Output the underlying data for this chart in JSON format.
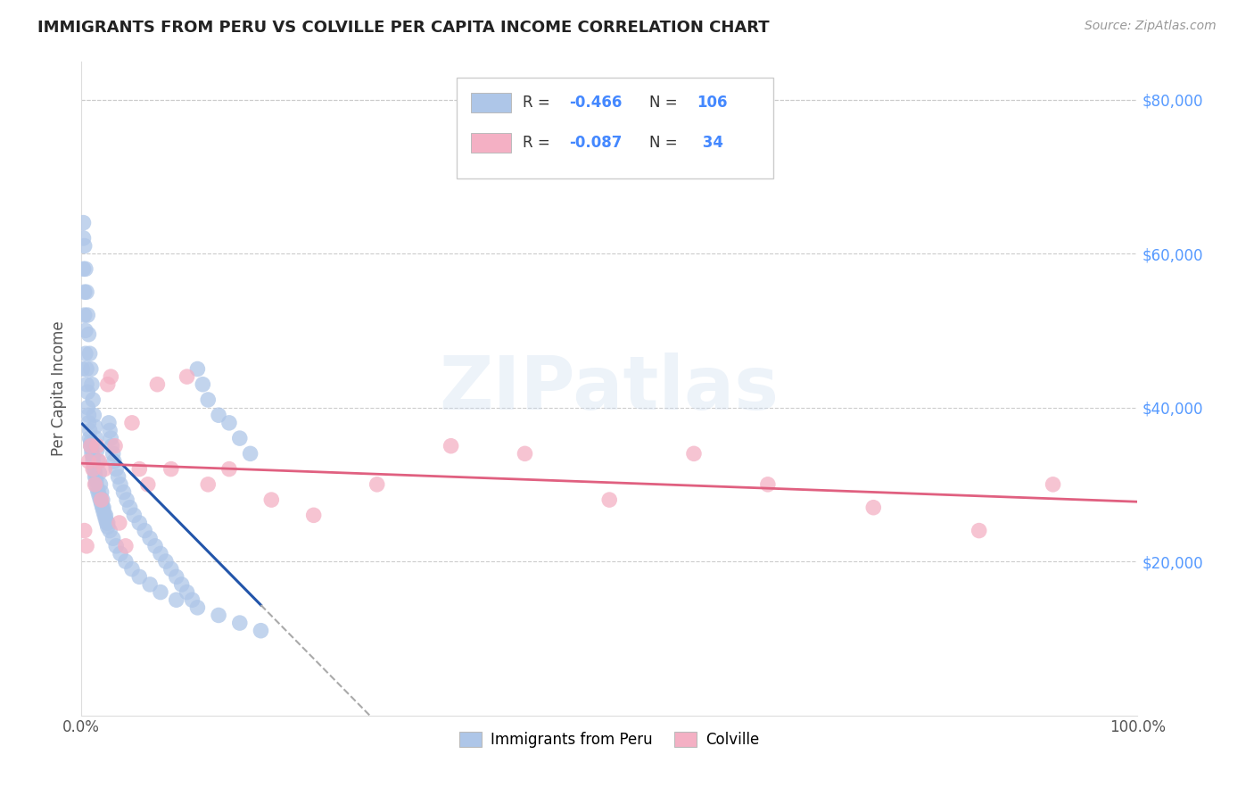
{
  "title": "IMMIGRANTS FROM PERU VS COLVILLE PER CAPITA INCOME CORRELATION CHART",
  "source": "Source: ZipAtlas.com",
  "ylabel": "Per Capita Income",
  "xlim": [
    0.0,
    1.0
  ],
  "ylim": [
    0,
    85000
  ],
  "yticks": [
    20000,
    40000,
    60000,
    80000
  ],
  "yticklabels": [
    "$20,000",
    "$40,000",
    "$60,000",
    "$80,000"
  ],
  "blue_color": "#aec6e8",
  "blue_line_color": "#2255aa",
  "pink_color": "#f4b0c4",
  "pink_line_color": "#e06080",
  "blue_scatter_x": [
    0.001,
    0.002,
    0.002,
    0.003,
    0.003,
    0.004,
    0.004,
    0.005,
    0.005,
    0.006,
    0.006,
    0.007,
    0.007,
    0.008,
    0.008,
    0.009,
    0.009,
    0.01,
    0.01,
    0.011,
    0.011,
    0.012,
    0.012,
    0.013,
    0.013,
    0.014,
    0.014,
    0.015,
    0.016,
    0.017,
    0.018,
    0.019,
    0.02,
    0.021,
    0.022,
    0.023,
    0.024,
    0.025,
    0.026,
    0.027,
    0.028,
    0.029,
    0.03,
    0.031,
    0.033,
    0.035,
    0.037,
    0.04,
    0.043,
    0.046,
    0.05,
    0.055,
    0.06,
    0.065,
    0.07,
    0.075,
    0.08,
    0.085,
    0.09,
    0.095,
    0.1,
    0.105,
    0.11,
    0.115,
    0.12,
    0.13,
    0.14,
    0.15,
    0.16,
    0.002,
    0.003,
    0.004,
    0.005,
    0.006,
    0.007,
    0.008,
    0.009,
    0.01,
    0.011,
    0.012,
    0.013,
    0.014,
    0.015,
    0.016,
    0.017,
    0.018,
    0.019,
    0.02,
    0.021,
    0.023,
    0.025,
    0.027,
    0.03,
    0.033,
    0.037,
    0.042,
    0.048,
    0.055,
    0.065,
    0.075,
    0.09,
    0.11,
    0.13,
    0.15,
    0.17
  ],
  "blue_scatter_y": [
    45000,
    62000,
    58000,
    55000,
    52000,
    50000,
    47000,
    45000,
    43000,
    42000,
    40000,
    39000,
    38000,
    37000,
    36000,
    35500,
    35000,
    34500,
    34000,
    33500,
    33000,
    32500,
    32000,
    31500,
    31000,
    30500,
    30000,
    29500,
    29000,
    28500,
    28000,
    27500,
    27000,
    26500,
    26000,
    25500,
    25000,
    24500,
    38000,
    37000,
    36000,
    35000,
    34000,
    33000,
    32000,
    31000,
    30000,
    29000,
    28000,
    27000,
    26000,
    25000,
    24000,
    23000,
    22000,
    21000,
    20000,
    19000,
    18000,
    17000,
    16000,
    15000,
    45000,
    43000,
    41000,
    39000,
    38000,
    36000,
    34000,
    64000,
    61000,
    58000,
    55000,
    52000,
    49500,
    47000,
    45000,
    43000,
    41000,
    39000,
    37500,
    36000,
    34500,
    33000,
    31500,
    30000,
    29000,
    28000,
    27000,
    26000,
    25000,
    24000,
    23000,
    22000,
    21000,
    20000,
    19000,
    18000,
    17000,
    16000,
    15000,
    14000,
    13000,
    12000,
    11000
  ],
  "pink_scatter_x": [
    0.003,
    0.005,
    0.007,
    0.009,
    0.011,
    0.013,
    0.015,
    0.017,
    0.019,
    0.022,
    0.025,
    0.028,
    0.032,
    0.036,
    0.042,
    0.048,
    0.055,
    0.063,
    0.072,
    0.085,
    0.1,
    0.12,
    0.14,
    0.18,
    0.22,
    0.28,
    0.35,
    0.42,
    0.5,
    0.58,
    0.65,
    0.75,
    0.85,
    0.92
  ],
  "pink_scatter_y": [
    24000,
    22000,
    33000,
    35000,
    32000,
    30000,
    35000,
    33000,
    28000,
    32000,
    43000,
    44000,
    35000,
    25000,
    22000,
    38000,
    32000,
    30000,
    43000,
    32000,
    44000,
    30000,
    32000,
    28000,
    26000,
    30000,
    35000,
    34000,
    28000,
    34000,
    30000,
    27000,
    24000,
    30000
  ]
}
